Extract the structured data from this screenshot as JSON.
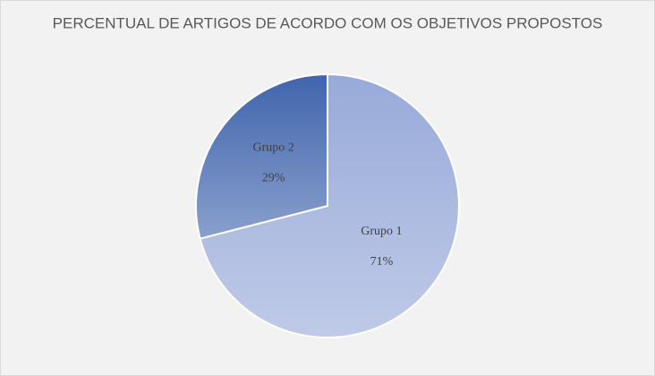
{
  "chart_data": {
    "type": "pie",
    "title": "PERCENTUAL DE ARTIGOS DE ACORDO COM OS OBJETIVOS PROPOSTOS",
    "categories": [
      "Grupo 1",
      "Grupo 2"
    ],
    "values": [
      71,
      29
    ],
    "value_labels": [
      "71%",
      "29%"
    ],
    "colors": [
      "#98aad9",
      "#4065ad"
    ]
  }
}
